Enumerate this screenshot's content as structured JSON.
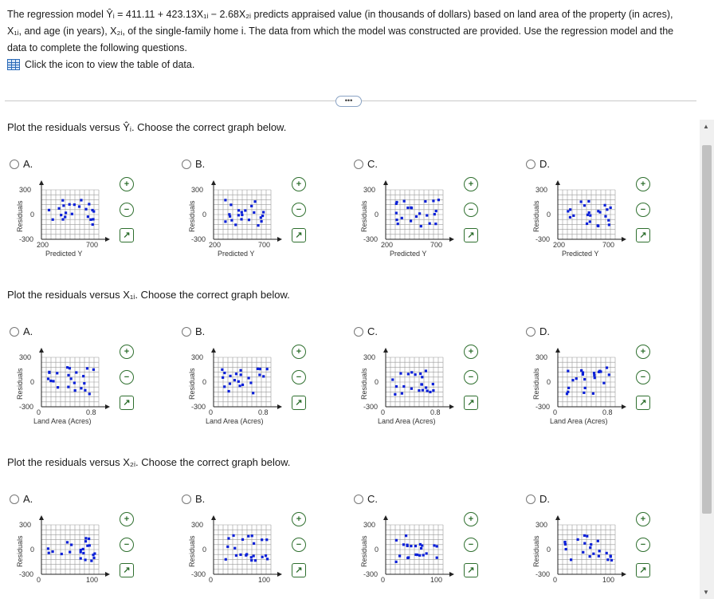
{
  "intro": {
    "line1": "The regression model Ŷᵢ = 411.11 + 423.13X₁ᵢ − 2.68X₂ᵢ predicts appraised value (in thousands of dollars) based on land area of the property (in acres),",
    "line2": "X₁ᵢ, and age (in years), X₂ᵢ, of the single-family home i. The data from which the model was constructed are provided. Use the regression model and the",
    "line3": "data to complete the following questions.",
    "link": "Click the icon to view the table of data."
  },
  "more_button": "•••",
  "questions": [
    {
      "prompt": "Plot the residuals versus Ŷᵢ. Choose the correct graph below.",
      "x_label": "Predicted Y",
      "x_ticks": [
        "200",
        "700"
      ],
      "options": [
        "A.",
        "B.",
        "C.",
        "D."
      ]
    },
    {
      "prompt": "Plot the residuals versus X₁ᵢ. Choose the correct graph below.",
      "x_label": "Land Area (Acres)",
      "x_ticks": [
        "0",
        "0.8"
      ],
      "options": [
        "A.",
        "B.",
        "C.",
        "D."
      ]
    },
    {
      "prompt": "Plot the residuals versus X₂ᵢ. Choose the correct graph below.",
      "x_label": "",
      "x_ticks": [
        "0",
        "100"
      ],
      "options": [
        "A.",
        "B.",
        "C.",
        "D."
      ]
    }
  ],
  "y_label": "Residuals",
  "y_ticks": [
    "300",
    "0",
    "-300"
  ],
  "colors": {
    "point": "#0b20d8",
    "grid": "#9a9a9a",
    "tool": "#2e6f2e",
    "link": "#2a6ab8"
  },
  "icons": {
    "zoom_in": "zoom-in-icon",
    "zoom_out": "zoom-out-icon",
    "expand": "expand-icon",
    "table": "table-icon"
  }
}
